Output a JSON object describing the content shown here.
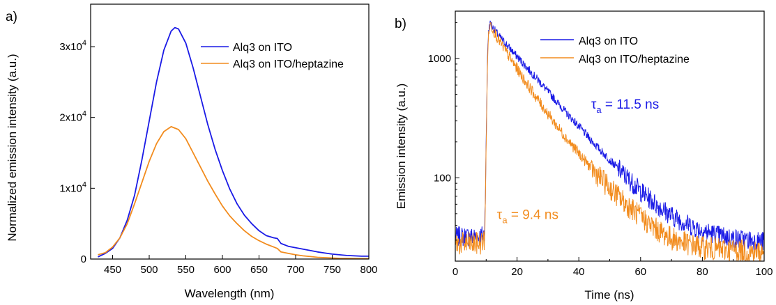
{
  "chart_data": [
    {
      "panel_label": "a)",
      "type": "line",
      "xlabel": "Wavelength (nm)",
      "ylabel": "Normalized emission intensity (a.u.)",
      "xlim": [
        420,
        800
      ],
      "ylim": [
        0,
        36000
      ],
      "x_ticks": [
        450,
        500,
        550,
        600,
        650,
        700,
        750,
        800
      ],
      "x_tick_labels": [
        "450",
        "500",
        "550",
        "600",
        "650",
        "700",
        "750",
        "800"
      ],
      "y_ticks": [
        0,
        10000,
        20000,
        30000
      ],
      "y_tick_labels": [
        {
          "base": "0",
          "exp": ""
        },
        {
          "base": "1x10",
          "exp": "4"
        },
        {
          "base": "2x10",
          "exp": "4"
        },
        {
          "base": "3x10",
          "exp": "4"
        }
      ],
      "legend_position": "top-right",
      "series": [
        {
          "name": "Alq3 on ITO",
          "color": "#1a1ae6",
          "x": [
            430,
            440,
            450,
            460,
            470,
            480,
            490,
            500,
            510,
            520,
            530,
            535,
            540,
            550,
            560,
            570,
            580,
            590,
            600,
            610,
            620,
            630,
            640,
            650,
            660,
            670,
            675,
            680,
            690,
            700,
            710,
            720,
            730,
            740,
            750,
            760,
            770,
            780,
            790,
            800
          ],
          "y": [
            300,
            800,
            1500,
            3000,
            5500,
            9000,
            14000,
            19500,
            25000,
            29500,
            32200,
            32700,
            32500,
            30500,
            27000,
            23000,
            19000,
            15500,
            12500,
            9900,
            7800,
            6200,
            5000,
            4000,
            3300,
            3000,
            2900,
            2200,
            1800,
            1600,
            1400,
            1200,
            1000,
            850,
            700,
            600,
            500,
            450,
            400,
            400
          ]
        },
        {
          "name": "Alq3 on ITO/heptazine",
          "color": "#f28c1e",
          "x": [
            430,
            440,
            450,
            460,
            470,
            480,
            490,
            500,
            510,
            520,
            530,
            540,
            550,
            560,
            570,
            580,
            590,
            600,
            610,
            620,
            630,
            640,
            650,
            660,
            670,
            675,
            680,
            690,
            700,
            710,
            720,
            730,
            740,
            750,
            760,
            770,
            780,
            790,
            800
          ],
          "y": [
            600,
            900,
            1700,
            3000,
            5000,
            7800,
            10800,
            13800,
            16300,
            18000,
            18700,
            18300,
            17000,
            15000,
            13000,
            11000,
            9200,
            7500,
            6100,
            5000,
            4000,
            3200,
            2600,
            2100,
            1700,
            1500,
            1000,
            800,
            600,
            450,
            350,
            250,
            200,
            150,
            100,
            80,
            70,
            60,
            50
          ]
        }
      ]
    },
    {
      "panel_label": "b)",
      "type": "line",
      "xlabel": "Time (ns)",
      "ylabel": "Emission intensity (a.u.)",
      "xlim": [
        0,
        100
      ],
      "ylim": [
        20,
        2500
      ],
      "y_scale": "log",
      "x_ticks": [
        0,
        20,
        40,
        60,
        80,
        100
      ],
      "x_tick_labels": [
        "0",
        "20",
        "40",
        "60",
        "80",
        "100"
      ],
      "y_ticks": [
        100,
        1000
      ],
      "y_tick_labels": [
        "100",
        "1000"
      ],
      "legend_position": "top-right",
      "series": [
        {
          "name": "Alq3 on ITO",
          "color": "#1a1ae6",
          "x": [
            0,
            2,
            4,
            6,
            8,
            9.5,
            10,
            10.5,
            11,
            11.5,
            12,
            14,
            16,
            18,
            20,
            22,
            25,
            28,
            30,
            33,
            36,
            40,
            44,
            48,
            52,
            56,
            60,
            65,
            70,
            75,
            80,
            85,
            90,
            95,
            100
          ],
          "y": [
            32,
            32,
            32,
            32,
            32,
            34,
            200,
            1300,
            1900,
            2000,
            1850,
            1560,
            1360,
            1190,
            1040,
            910,
            745,
            610,
            530,
            430,
            350,
            270,
            206,
            160,
            125,
            98,
            77,
            60,
            48,
            41,
            36,
            33,
            31,
            30,
            29
          ]
        },
        {
          "name": "Alq3 on ITO/heptazine",
          "color": "#f28c1e",
          "x": [
            0,
            2,
            4,
            6,
            8,
            9.5,
            10,
            10.5,
            11,
            11.5,
            12,
            14,
            16,
            18,
            20,
            22,
            25,
            28,
            30,
            33,
            36,
            40,
            44,
            48,
            52,
            56,
            60,
            65,
            70,
            75,
            80,
            85,
            90,
            95,
            100
          ],
          "y": [
            28,
            28,
            28,
            28,
            28,
            30,
            180,
            1200,
            1800,
            1950,
            1800,
            1440,
            1190,
            985,
            820,
            685,
            525,
            405,
            345,
            270,
            214,
            160,
            121,
            93,
            73,
            58,
            47,
            37,
            31,
            28,
            26,
            25,
            25,
            24,
            24
          ]
        }
      ],
      "annotations": [
        {
          "symbol": "τ",
          "sub": "a",
          "text": " = 11.5 ns",
          "color": "#1a1ae6",
          "at_x": 44,
          "at_y": 380
        },
        {
          "symbol": "τ",
          "sub": "a",
          "text": " = 9.4 ns",
          "color": "#f28c1e",
          "at_x": 13.5,
          "at_y": 45
        }
      ]
    }
  ]
}
